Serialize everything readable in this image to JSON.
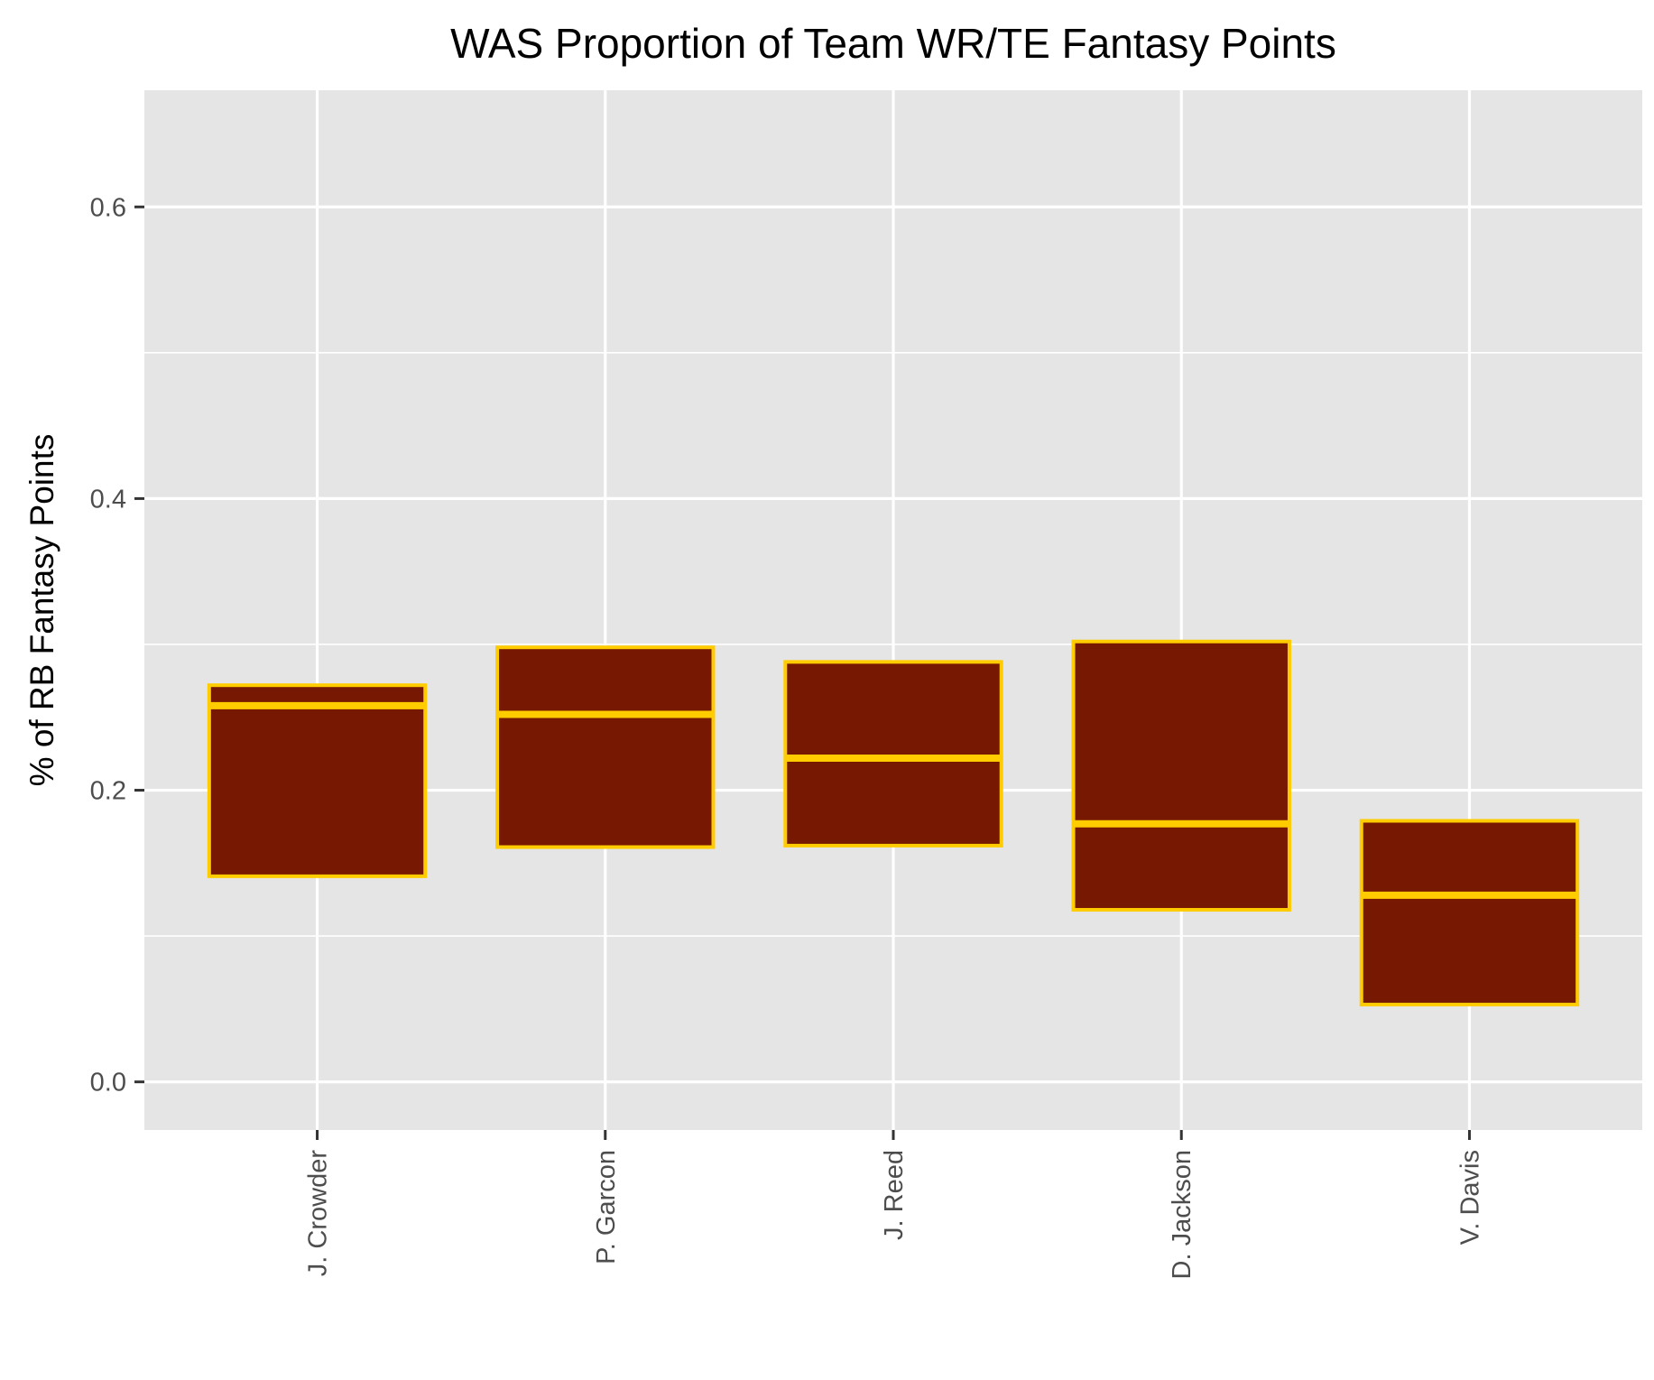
{
  "chart_data": {
    "type": "box",
    "title": "WAS Proportion of Team WR/TE Fantasy Points",
    "xlabel": "",
    "ylabel": "% of RB Fantasy Points",
    "ylim": [
      -0.033,
      0.68
    ],
    "y_ticks": [
      "0.0",
      "0.2",
      "0.4",
      "0.6"
    ],
    "grid": true,
    "categories": [
      "J. Crowder",
      "P. Garcon",
      "J. Reed",
      "D. Jackson",
      "V. Davis"
    ],
    "boxes": [
      {
        "q1": 0.141,
        "median": 0.258,
        "q3": 0.272
      },
      {
        "q1": 0.161,
        "median": 0.252,
        "q3": 0.298
      },
      {
        "q1": 0.162,
        "median": 0.222,
        "q3": 0.288
      },
      {
        "q1": 0.118,
        "median": 0.177,
        "q3": 0.302
      },
      {
        "q1": 0.053,
        "median": 0.128,
        "q3": 0.179
      }
    ],
    "colors": {
      "panel": "#e5e5e5",
      "grid": "#ffffff",
      "box_fill": "#771902",
      "box_outline": "#ffcc00",
      "tick": "#333333"
    }
  }
}
